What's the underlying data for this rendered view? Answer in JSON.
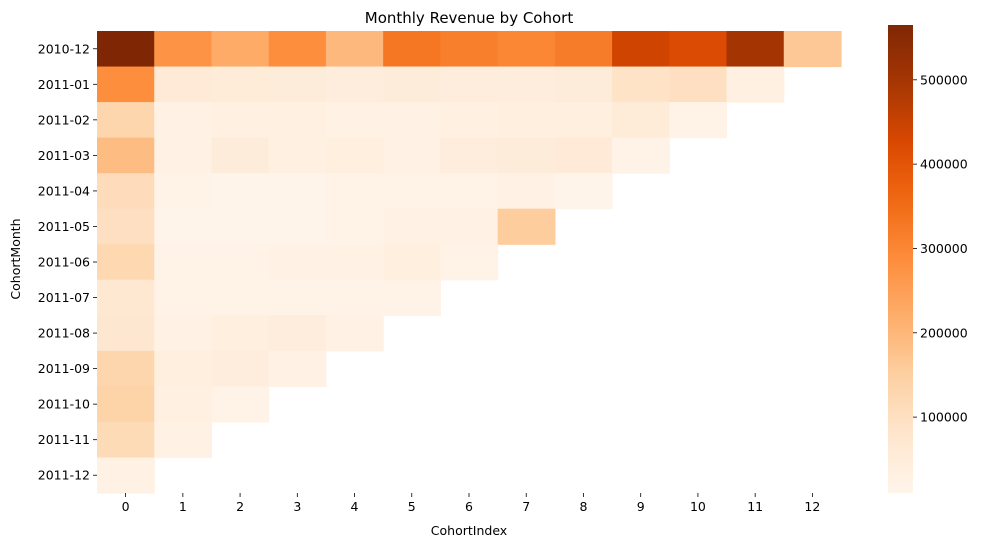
{
  "chart_data": {
    "type": "heatmap",
    "title": "Monthly Revenue by Cohort",
    "xlabel": "CohortIndex",
    "ylabel": "CohortMonth",
    "x": [
      "0",
      "1",
      "2",
      "3",
      "4",
      "5",
      "6",
      "7",
      "8",
      "9",
      "10",
      "11",
      "12"
    ],
    "y": [
      "2010-12",
      "2011-01",
      "2011-02",
      "2011-03",
      "2011-04",
      "2011-05",
      "2011-06",
      "2011-07",
      "2011-08",
      "2011-09",
      "2011-10",
      "2011-11",
      "2011-12"
    ],
    "values": [
      [
        565000,
        275000,
        225000,
        285000,
        195000,
        330000,
        315000,
        300000,
        320000,
        440000,
        420000,
        500000,
        165000
      ],
      [
        285000,
        60000,
        55000,
        50000,
        45000,
        50000,
        45000,
        45000,
        50000,
        90000,
        100000,
        35000,
        null
      ],
      [
        130000,
        25000,
        35000,
        35000,
        30000,
        30000,
        35000,
        40000,
        40000,
        55000,
        20000,
        null,
        null
      ],
      [
        190000,
        30000,
        50000,
        35000,
        40000,
        30000,
        45000,
        50000,
        60000,
        20000,
        null,
        null,
        null
      ],
      [
        110000,
        20000,
        15000,
        15000,
        20000,
        20000,
        20000,
        30000,
        15000,
        null,
        null,
        null,
        null
      ],
      [
        100000,
        15000,
        15000,
        15000,
        20000,
        25000,
        25000,
        155000,
        null,
        null,
        null,
        null,
        null
      ],
      [
        125000,
        20000,
        20000,
        25000,
        25000,
        40000,
        20000,
        null,
        null,
        null,
        null,
        null,
        null
      ],
      [
        70000,
        20000,
        20000,
        20000,
        20000,
        20000,
        null,
        null,
        null,
        null,
        null,
        null,
        null
      ],
      [
        75000,
        25000,
        40000,
        45000,
        25000,
        null,
        null,
        null,
        null,
        null,
        null,
        null,
        null
      ],
      [
        130000,
        40000,
        45000,
        25000,
        null,
        null,
        null,
        null,
        null,
        null,
        null,
        null,
        null
      ],
      [
        140000,
        35000,
        20000,
        null,
        null,
        null,
        null,
        null,
        null,
        null,
        null,
        null,
        null
      ],
      [
        115000,
        30000,
        null,
        null,
        null,
        null,
        null,
        null,
        null,
        null,
        null,
        null,
        null
      ],
      [
        30000,
        null,
        null,
        null,
        null,
        null,
        null,
        null,
        null,
        null,
        null,
        null,
        null
      ]
    ],
    "colormap": "Oranges",
    "color_range": [
      10000,
      565000
    ],
    "colorbar": {
      "ticks": [
        100000,
        200000,
        300000,
        400000,
        500000
      ],
      "tick_labels": [
        "100000",
        "200000",
        "300000",
        "400000",
        "500000"
      ]
    },
    "grid": false,
    "legend": "colorbar-right"
  }
}
